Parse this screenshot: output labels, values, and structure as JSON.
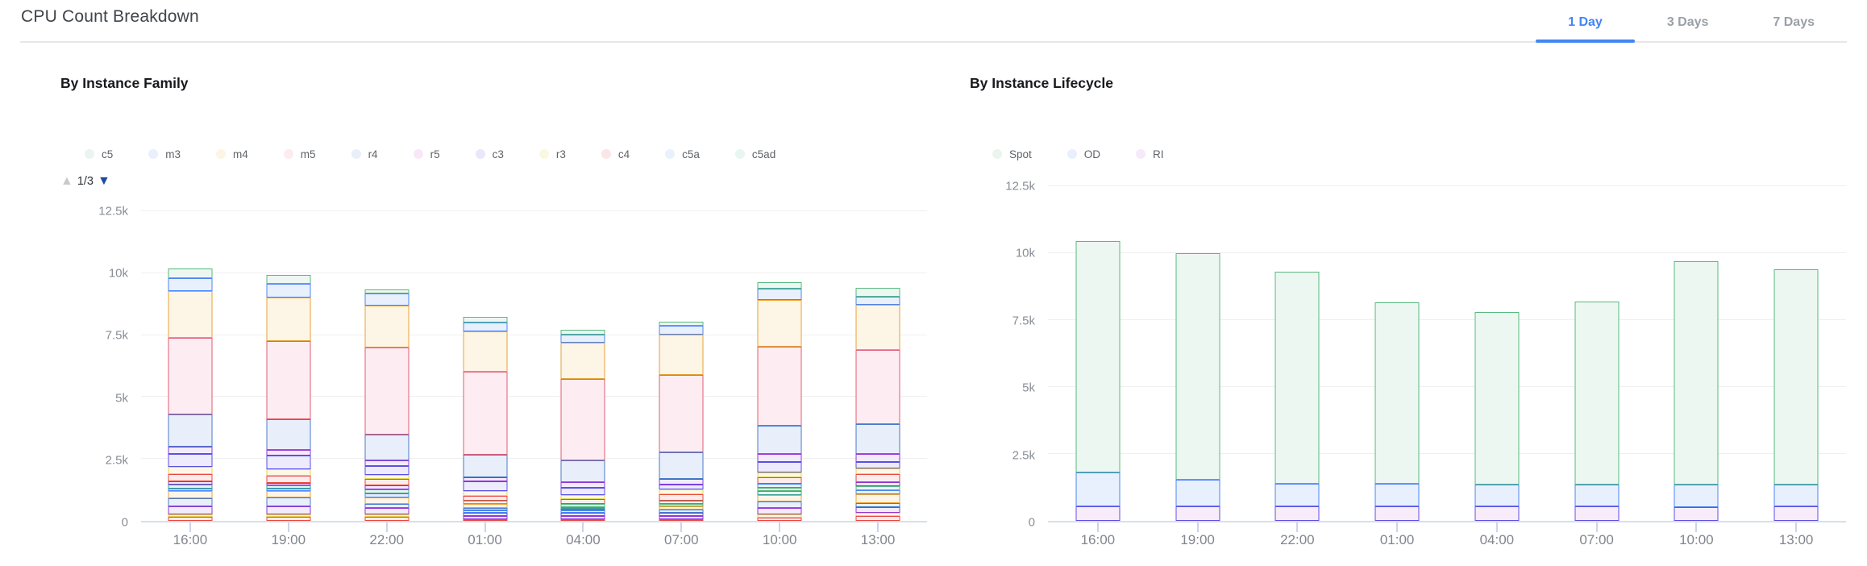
{
  "header": {
    "title": "CPU Count Breakdown",
    "tabs": [
      {
        "label": "1 Day",
        "active": true
      },
      {
        "label": "3 Days",
        "active": false
      },
      {
        "label": "7 Days",
        "active": false
      }
    ],
    "accent_color": "#4285f4",
    "inactive_tab_color": "#9aa0a6"
  },
  "palette": {
    "green": {
      "stroke": "#57b97f",
      "fill": "#edf7f1"
    },
    "blue": {
      "stroke": "#4c86f3",
      "fill": "#e9f0fd"
    },
    "amber": {
      "stroke": "#e6a23b",
      "fill": "#fdf5e6"
    },
    "rose": {
      "stroke": "#e25c74",
      "fill": "#fdedf2"
    },
    "steel": {
      "stroke": "#4b79c9",
      "fill": "#e9effa"
    },
    "violet": {
      "stroke": "#9138d8",
      "fill": "#f3eafc"
    },
    "indigo": {
      "stroke": "#5b4fe1",
      "fill": "#edebfc"
    },
    "yellow": {
      "stroke": "#e4d54b",
      "fill": "#fbf9e3"
    },
    "red": {
      "stroke": "#e9483f",
      "fill": "#fdecec"
    },
    "teal": {
      "stroke": "#3ba28e",
      "fill": "#e8f5f1"
    },
    "spot": {
      "stroke": "#57b97f",
      "fill": "#edf7f1"
    },
    "od": {
      "stroke": "#4c86f3",
      "fill": "#e9f0fd"
    },
    "ri": {
      "stroke": "#6150e2",
      "fill": "#f8ecfb"
    }
  },
  "chart_data": [
    {
      "type": "bar",
      "stacked": true,
      "title": "By Instance Family",
      "x": [
        "16:00",
        "19:00",
        "22:00",
        "01:00",
        "04:00",
        "07:00",
        "10:00",
        "13:00"
      ],
      "ylim": [
        0,
        12500
      ],
      "yticks": [
        {
          "value": 0,
          "label": "0"
        },
        {
          "value": 2500,
          "label": "2.5k"
        },
        {
          "value": 5000,
          "label": "5k"
        },
        {
          "value": 7500,
          "label": "7.5k"
        },
        {
          "value": 10000,
          "label": "10k"
        },
        {
          "value": 12500,
          "label": "12.5k"
        }
      ],
      "grid": true,
      "legend_position": "top",
      "legend_pagination": "1/3",
      "legend": [
        {
          "label": "c5",
          "color": "#e9f5ee"
        },
        {
          "label": "m3",
          "color": "#e9effc"
        },
        {
          "label": "m4",
          "color": "#fdf4e3"
        },
        {
          "label": "m5",
          "color": "#fcebef"
        },
        {
          "label": "r4",
          "color": "#e9eef8"
        },
        {
          "label": "r5",
          "color": "#f8e8f7"
        },
        {
          "label": "c3",
          "color": "#eae7fa"
        },
        {
          "label": "r3",
          "color": "#faf8e0"
        },
        {
          "label": "c4",
          "color": "#fbe5e6"
        },
        {
          "label": "c5a",
          "color": "#e9f2fc"
        },
        {
          "label": "c5ad",
          "color": "#e8f6f0"
        }
      ],
      "note": "Legend page 1 of 3; bars stack all instance-family series. Segments listed bottom-to-top as [colorKey, cpuCount].",
      "bars": [
        {
          "label": "16:00",
          "total": 10210,
          "segments": [
            [
              "red",
              150
            ],
            [
              "yellow",
              120
            ],
            [
              "violet",
              330
            ],
            [
              "steel",
              320
            ],
            [
              "amber",
              280
            ],
            [
              "blue",
              120
            ],
            [
              "teal",
              140
            ],
            [
              "violet",
              140
            ],
            [
              "red",
              300
            ],
            [
              "yellow",
              280
            ],
            [
              "indigo",
              540
            ],
            [
              "violet",
              270
            ],
            [
              "steel",
              1300
            ],
            [
              "rose",
              3100
            ],
            [
              "amber",
              1900
            ],
            [
              "blue",
              520
            ],
            [
              "green",
              400
            ]
          ]
        },
        {
          "label": "19:00",
          "total": 9930,
          "segments": [
            [
              "red",
              160
            ],
            [
              "yellow",
              110
            ],
            [
              "violet",
              330
            ],
            [
              "steel",
              330
            ],
            [
              "amber",
              270
            ],
            [
              "blue",
              110
            ],
            [
              "teal",
              110
            ],
            [
              "violet",
              110
            ],
            [
              "red",
              290
            ],
            [
              "yellow",
              270
            ],
            [
              "indigo",
              560
            ],
            [
              "violet",
              220
            ],
            [
              "steel",
              1250
            ],
            [
              "rose",
              3150
            ],
            [
              "amber",
              1750
            ],
            [
              "blue",
              560
            ],
            [
              "green",
              350
            ]
          ]
        },
        {
          "label": "22:00",
          "total": 9340,
          "segments": [
            [
              "red",
              160
            ],
            [
              "yellow",
              90
            ],
            [
              "violet",
              260
            ],
            [
              "steel",
              170
            ],
            [
              "amber",
              260
            ],
            [
              "blue",
              160
            ],
            [
              "teal",
              170
            ],
            [
              "violet",
              170
            ],
            [
              "red",
              260
            ],
            [
              "yellow",
              150
            ],
            [
              "indigo",
              370
            ],
            [
              "violet",
              220
            ],
            [
              "steel",
              1030
            ],
            [
              "rose",
              3530
            ],
            [
              "amber",
              1680
            ],
            [
              "blue",
              490
            ],
            [
              "green",
              170
            ]
          ]
        },
        {
          "label": "01:00",
          "total": 8250,
          "segments": [
            [
              "red",
              80
            ],
            [
              "violet",
              120
            ],
            [
              "indigo",
              120
            ],
            [
              "blue",
              100
            ],
            [
              "steel",
              90
            ],
            [
              "amber",
              170
            ],
            [
              "green",
              130
            ],
            [
              "red",
              200
            ],
            [
              "yellow",
              190
            ],
            [
              "indigo",
              400
            ],
            [
              "violet",
              170
            ],
            [
              "steel",
              910
            ],
            [
              "rose",
              3340
            ],
            [
              "amber",
              1630
            ],
            [
              "blue",
              350
            ],
            [
              "green",
              250
            ]
          ]
        },
        {
          "label": "04:00",
          "total": 7720,
          "segments": [
            [
              "red",
              70
            ],
            [
              "violet",
              130
            ],
            [
              "indigo",
              120
            ],
            [
              "blue",
              90
            ],
            [
              "steel",
              80
            ],
            [
              "teal",
              70
            ],
            [
              "green",
              130
            ],
            [
              "red",
              180
            ],
            [
              "yellow",
              180
            ],
            [
              "indigo",
              290
            ],
            [
              "violet",
              220
            ],
            [
              "steel",
              870
            ],
            [
              "rose",
              3310
            ],
            [
              "amber",
              1460
            ],
            [
              "blue",
              330
            ],
            [
              "green",
              190
            ]
          ]
        },
        {
          "label": "07:00",
          "total": 8060,
          "segments": [
            [
              "red",
              80
            ],
            [
              "violet",
              130
            ],
            [
              "indigo",
              130
            ],
            [
              "steel",
              110
            ],
            [
              "amber",
              140
            ],
            [
              "green",
              110
            ],
            [
              "teal",
              100
            ],
            [
              "red",
              280
            ],
            [
              "yellow",
              200
            ],
            [
              "indigo",
              190
            ],
            [
              "violet",
              240
            ],
            [
              "steel",
              1060
            ],
            [
              "rose",
              3120
            ],
            [
              "amber",
              1630
            ],
            [
              "blue",
              360
            ],
            [
              "green",
              180
            ]
          ]
        },
        {
          "label": "10:00",
          "total": 9640,
          "segments": [
            [
              "red",
              130
            ],
            [
              "yellow",
              130
            ],
            [
              "violet",
              260
            ],
            [
              "steel",
              260
            ],
            [
              "amber",
              270
            ],
            [
              "teal",
              140
            ],
            [
              "green",
              150
            ],
            [
              "blue",
              150
            ],
            [
              "red",
              280
            ],
            [
              "yellow",
              190
            ],
            [
              "indigo",
              430
            ],
            [
              "violet",
              300
            ],
            [
              "steel",
              1150
            ],
            [
              "rose",
              3200
            ],
            [
              "amber",
              1900
            ],
            [
              "blue",
              430
            ],
            [
              "green",
              270
            ]
          ]
        },
        {
          "label": "13:00",
          "total": 9410,
          "segments": [
            [
              "red",
              200
            ],
            [
              "yellow",
              130
            ],
            [
              "violet",
              220
            ],
            [
              "steel",
              170
            ],
            [
              "amber",
              370
            ],
            [
              "blue",
              160
            ],
            [
              "green",
              160
            ],
            [
              "violet",
              170
            ],
            [
              "red",
              320
            ],
            [
              "yellow",
              220
            ],
            [
              "indigo",
              270
            ],
            [
              "violet",
              330
            ],
            [
              "steel",
              1190
            ],
            [
              "rose",
              2990
            ],
            [
              "amber",
              1830
            ],
            [
              "blue",
              330
            ],
            [
              "green",
              350
            ]
          ]
        }
      ]
    },
    {
      "type": "bar",
      "stacked": true,
      "title": "By Instance Lifecycle",
      "x": [
        "16:00",
        "19:00",
        "22:00",
        "01:00",
        "04:00",
        "07:00",
        "10:00",
        "13:00"
      ],
      "ylim": [
        0,
        12500
      ],
      "yticks": [
        {
          "value": 0,
          "label": "0"
        },
        {
          "value": 2500,
          "label": "2.5k"
        },
        {
          "value": 5000,
          "label": "5k"
        },
        {
          "value": 7500,
          "label": "7.5k"
        },
        {
          "value": 10000,
          "label": "10k"
        },
        {
          "value": 12500,
          "label": "12.5k"
        }
      ],
      "grid": true,
      "legend_position": "top",
      "legend": [
        {
          "label": "Spot",
          "color": "#e9f5ee"
        },
        {
          "label": "OD",
          "color": "#e9effc"
        },
        {
          "label": "RI",
          "color": "#f6eafa"
        }
      ],
      "note": "Series listed bottom-to-top in stack order.",
      "series": [
        {
          "name": "RI",
          "color": "ri",
          "values": [
            550,
            550,
            550,
            550,
            550,
            550,
            500,
            550
          ]
        },
        {
          "name": "OD",
          "color": "od",
          "values": [
            1250,
            1000,
            850,
            850,
            800,
            800,
            850,
            800
          ]
        },
        {
          "name": "Spot",
          "color": "spot",
          "values": [
            8650,
            8450,
            7900,
            6750,
            6450,
            6850,
            8350,
            8050
          ]
        }
      ],
      "totals": [
        10450,
        10000,
        9300,
        8150,
        7800,
        8200,
        9700,
        9400
      ]
    }
  ]
}
